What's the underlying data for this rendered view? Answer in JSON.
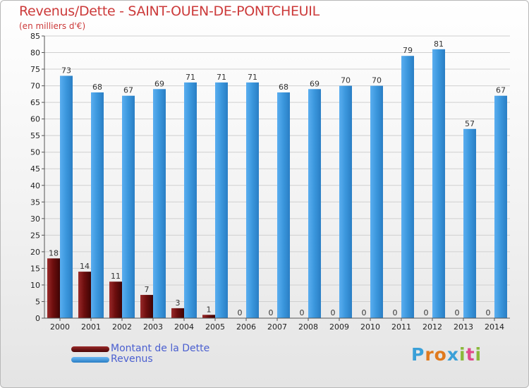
{
  "title": "Revenus/Dette - SAINT-OUEN-DE-PONTCHEUIL",
  "subtitle": "(en milliers d'€)",
  "logo": "Proxiti",
  "colors": {
    "title": "#cc3a3a",
    "dette": "#6e0e0e",
    "revenus": "#3a96dc",
    "legend_text": "#4a5fd0"
  },
  "chart_data": {
    "type": "bar",
    "categories": [
      "2000",
      "2001",
      "2002",
      "2003",
      "2004",
      "2005",
      "2006",
      "2007",
      "2008",
      "2009",
      "2010",
      "2011",
      "2012",
      "2013",
      "2014"
    ],
    "series": [
      {
        "name": "Montant de la Dette",
        "values": [
          18,
          14,
          11,
          7,
          3,
          1,
          0,
          0,
          0,
          0,
          0,
          0,
          0,
          0,
          0
        ]
      },
      {
        "name": "Revenus",
        "values": [
          73,
          68,
          67,
          69,
          71,
          71,
          71,
          68,
          69,
          70,
          70,
          79,
          81,
          57,
          67
        ]
      }
    ],
    "ylim": [
      0,
      85
    ],
    "yticks": [
      0,
      5,
      10,
      15,
      20,
      25,
      30,
      35,
      40,
      45,
      50,
      55,
      60,
      65,
      70,
      75,
      80,
      85
    ],
    "grid": true,
    "legend_position": "bottom-left"
  }
}
